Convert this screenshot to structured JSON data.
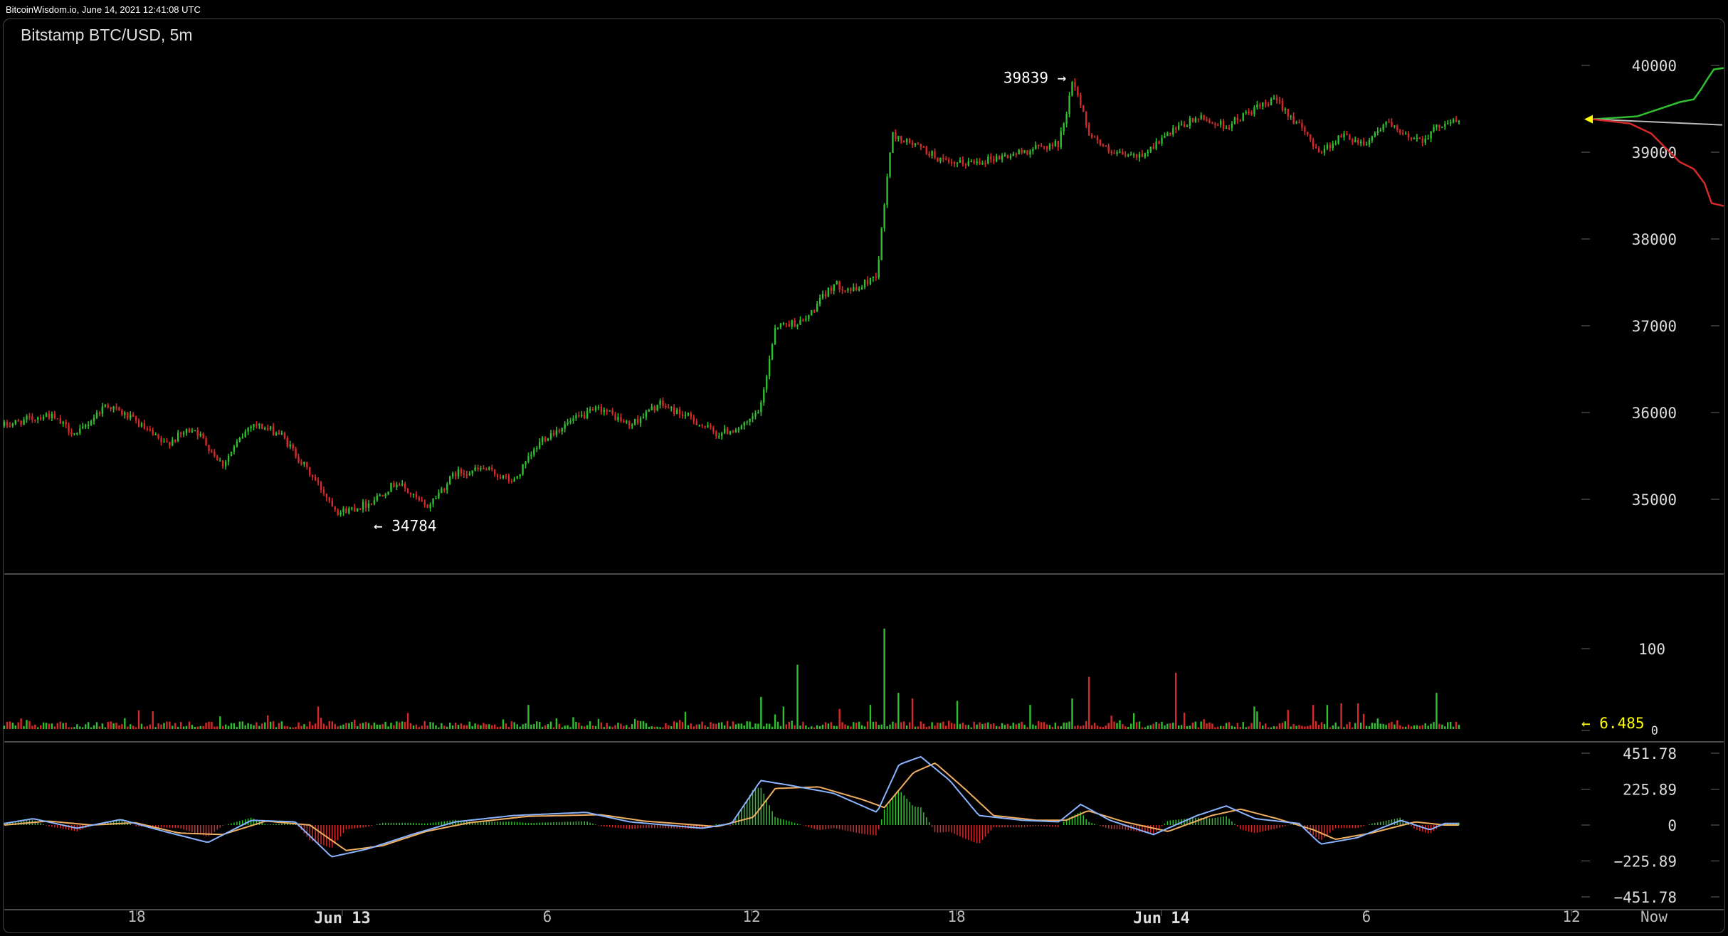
{
  "header": {
    "source_line": "BitcoinWisdom.io, June 14, 2021 12:41:08 UTC"
  },
  "chart_data": {
    "type": "candlestick",
    "title": "Bitstamp BTC/USD, 5m",
    "colors": {
      "up": "#2fbf2f",
      "down": "#d42a2a",
      "grid": "#555",
      "macd_line": "#8ab4ff",
      "signal_line": "#f0b060",
      "volume_readout": "#ffff00"
    },
    "price_axis": {
      "ticks": [
        35000,
        36000,
        37000,
        38000,
        39000,
        40000
      ],
      "range": [
        34000,
        40500
      ]
    },
    "x_axis": {
      "ticks": [
        {
          "label": "18",
          "bold": false
        },
        {
          "label": "Jun 13",
          "bold": true
        },
        {
          "label": "6",
          "bold": false
        },
        {
          "label": "12",
          "bold": false
        },
        {
          "label": "18",
          "bold": false
        },
        {
          "label": "Jun 14",
          "bold": true
        },
        {
          "label": "6",
          "bold": false
        },
        {
          "label": "12",
          "bold": false
        },
        {
          "label": "Now",
          "bold": false
        }
      ]
    },
    "price_path": [
      [
        0,
        35850
      ],
      [
        0.03,
        35980
      ],
      [
        0.05,
        35740
      ],
      [
        0.07,
        36100
      ],
      [
        0.09,
        35900
      ],
      [
        0.11,
        35630
      ],
      [
        0.13,
        35830
      ],
      [
        0.15,
        35400
      ],
      [
        0.17,
        35880
      ],
      [
        0.19,
        35750
      ],
      [
        0.21,
        35300
      ],
      [
        0.23,
        34850
      ],
      [
        0.25,
        34950
      ],
      [
        0.27,
        35200
      ],
      [
        0.29,
        34900
      ],
      [
        0.31,
        35300
      ],
      [
        0.33,
        35350
      ],
      [
        0.35,
        35200
      ],
      [
        0.37,
        35700
      ],
      [
        0.39,
        35900
      ],
      [
        0.41,
        36050
      ],
      [
        0.43,
        35850
      ],
      [
        0.45,
        36100
      ],
      [
        0.47,
        35950
      ],
      [
        0.49,
        35750
      ],
      [
        0.51,
        35850
      ],
      [
        0.52,
        36050
      ],
      [
        0.53,
        37000
      ],
      [
        0.55,
        37050
      ],
      [
        0.57,
        37480
      ],
      [
        0.585,
        37400
      ],
      [
        0.6,
        37600
      ],
      [
        0.61,
        39200
      ],
      [
        0.63,
        39050
      ],
      [
        0.65,
        38850
      ],
      [
        0.67,
        38900
      ],
      [
        0.69,
        38960
      ],
      [
        0.71,
        39050
      ],
      [
        0.725,
        39100
      ],
      [
        0.735,
        39839
      ],
      [
        0.745,
        39250
      ],
      [
        0.76,
        38980
      ],
      [
        0.78,
        38950
      ],
      [
        0.8,
        39200
      ],
      [
        0.82,
        39400
      ],
      [
        0.84,
        39300
      ],
      [
        0.86,
        39500
      ],
      [
        0.875,
        39600
      ],
      [
        0.89,
        39300
      ],
      [
        0.905,
        39000
      ],
      [
        0.92,
        39200
      ],
      [
        0.935,
        39100
      ],
      [
        0.95,
        39350
      ],
      [
        0.96,
        39200
      ],
      [
        0.975,
        39150
      ],
      [
        0.99,
        39350
      ]
    ],
    "high_label": {
      "value": 39839,
      "text": "39839 →"
    },
    "low_label": {
      "value": 34784,
      "text": "← 34784"
    },
    "depth": {
      "bid_color": "#2fbf2f",
      "ask_color": "#d42a2a"
    },
    "volume": {
      "axis_ticks": [
        100
      ],
      "axis_zero": "0",
      "current_readout": "← 6.485",
      "spikes": [
        [
          0.215,
          28
        ],
        [
          0.36,
          30
        ],
        [
          0.52,
          40
        ],
        [
          0.535,
          28
        ],
        [
          0.545,
          80
        ],
        [
          0.575,
          25
        ],
        [
          0.595,
          30
        ],
        [
          0.605,
          125
        ],
        [
          0.615,
          45
        ],
        [
          0.625,
          38
        ],
        [
          0.655,
          35
        ],
        [
          0.705,
          30
        ],
        [
          0.735,
          38
        ],
        [
          0.745,
          65
        ],
        [
          0.805,
          70
        ],
        [
          0.86,
          28
        ],
        [
          0.9,
          30
        ],
        [
          0.91,
          30
        ],
        [
          0.92,
          32
        ],
        [
          0.93,
          32
        ],
        [
          0.985,
          45
        ]
      ]
    },
    "macd": {
      "axis_ticks": [
        "451.78",
        "225.89",
        "0",
        "−225.89",
        "−451.78"
      ],
      "range": [
        -500,
        500
      ],
      "line": [
        [
          0,
          10
        ],
        [
          0.02,
          40
        ],
        [
          0.05,
          -20
        ],
        [
          0.08,
          35
        ],
        [
          0.11,
          -40
        ],
        [
          0.14,
          -110
        ],
        [
          0.17,
          30
        ],
        [
          0.2,
          20
        ],
        [
          0.225,
          -200
        ],
        [
          0.25,
          -150
        ],
        [
          0.28,
          -60
        ],
        [
          0.31,
          20
        ],
        [
          0.35,
          60
        ],
        [
          0.4,
          80
        ],
        [
          0.43,
          20
        ],
        [
          0.48,
          -20
        ],
        [
          0.5,
          10
        ],
        [
          0.52,
          280
        ],
        [
          0.54,
          250
        ],
        [
          0.57,
          200
        ],
        [
          0.6,
          80
        ],
        [
          0.615,
          380
        ],
        [
          0.63,
          430
        ],
        [
          0.65,
          280
        ],
        [
          0.67,
          60
        ],
        [
          0.7,
          30
        ],
        [
          0.725,
          20
        ],
        [
          0.74,
          130
        ],
        [
          0.76,
          30
        ],
        [
          0.79,
          -60
        ],
        [
          0.82,
          60
        ],
        [
          0.84,
          120
        ],
        [
          0.86,
          40
        ],
        [
          0.89,
          10
        ],
        [
          0.905,
          -120
        ],
        [
          0.93,
          -80
        ],
        [
          0.96,
          30
        ],
        [
          0.98,
          -30
        ],
        [
          0.99,
          10
        ]
      ],
      "signal": [
        [
          0,
          0
        ],
        [
          0.03,
          25
        ],
        [
          0.06,
          0
        ],
        [
          0.09,
          15
        ],
        [
          0.12,
          -50
        ],
        [
          0.15,
          -60
        ],
        [
          0.18,
          25
        ],
        [
          0.21,
          0
        ],
        [
          0.235,
          -160
        ],
        [
          0.26,
          -130
        ],
        [
          0.29,
          -40
        ],
        [
          0.32,
          15
        ],
        [
          0.36,
          55
        ],
        [
          0.41,
          65
        ],
        [
          0.44,
          25
        ],
        [
          0.49,
          -10
        ],
        [
          0.515,
          50
        ],
        [
          0.53,
          230
        ],
        [
          0.56,
          240
        ],
        [
          0.59,
          160
        ],
        [
          0.605,
          110
        ],
        [
          0.625,
          330
        ],
        [
          0.64,
          390
        ],
        [
          0.66,
          230
        ],
        [
          0.68,
          60
        ],
        [
          0.71,
          30
        ],
        [
          0.73,
          30
        ],
        [
          0.745,
          90
        ],
        [
          0.77,
          20
        ],
        [
          0.8,
          -40
        ],
        [
          0.83,
          60
        ],
        [
          0.85,
          100
        ],
        [
          0.875,
          40
        ],
        [
          0.9,
          -30
        ],
        [
          0.915,
          -90
        ],
        [
          0.94,
          -50
        ],
        [
          0.97,
          20
        ],
        [
          0.99,
          0
        ]
      ]
    }
  }
}
